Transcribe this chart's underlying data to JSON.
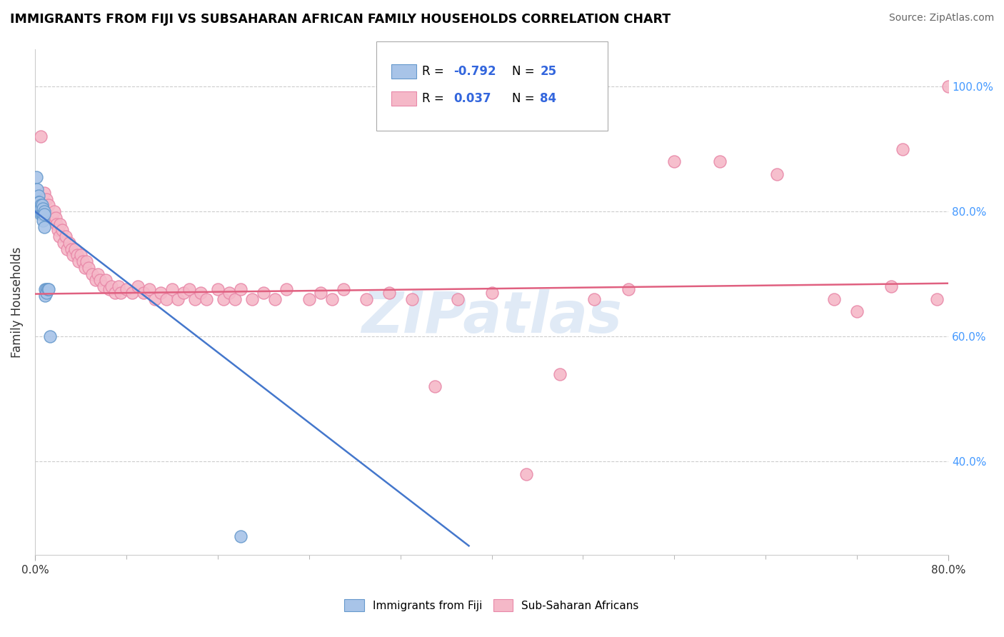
{
  "title": "IMMIGRANTS FROM FIJI VS SUBSAHARAN AFRICAN FAMILY HOUSEHOLDS CORRELATION CHART",
  "source": "Source: ZipAtlas.com",
  "ylabel": "Family Households",
  "fiji_color": "#a8c4e8",
  "fiji_edge_color": "#6699cc",
  "subsaharan_color": "#f5b8c8",
  "subsaharan_edge_color": "#e888a8",
  "trend_fiji_color": "#4477cc",
  "trend_subsaharan_color": "#e06080",
  "legend_R_color": "#3366dd",
  "watermark_color": "#ddeeff",
  "fiji_R": "-0.792",
  "fiji_N": "25",
  "subsaharan_R": "0.037",
  "subsaharan_N": "84",
  "xlim": [
    0.0,
    0.8
  ],
  "ylim": [
    0.25,
    1.06
  ],
  "fiji_x": [
    0.001,
    0.002,
    0.003,
    0.003,
    0.004,
    0.004,
    0.005,
    0.005,
    0.005,
    0.006,
    0.006,
    0.007,
    0.007,
    0.007,
    0.008,
    0.008,
    0.008,
    0.009,
    0.009,
    0.01,
    0.01,
    0.011,
    0.012,
    0.013,
    0.18
  ],
  "fiji_y": [
    0.855,
    0.835,
    0.825,
    0.815,
    0.815,
    0.805,
    0.81,
    0.805,
    0.795,
    0.81,
    0.795,
    0.805,
    0.795,
    0.785,
    0.8,
    0.795,
    0.775,
    0.675,
    0.665,
    0.675,
    0.67,
    0.675,
    0.675,
    0.6,
    0.28
  ],
  "subsaharan_x": [
    0.005,
    0.008,
    0.01,
    0.012,
    0.015,
    0.017,
    0.018,
    0.019,
    0.02,
    0.021,
    0.022,
    0.024,
    0.025,
    0.027,
    0.028,
    0.03,
    0.032,
    0.033,
    0.035,
    0.037,
    0.038,
    0.04,
    0.042,
    0.044,
    0.045,
    0.047,
    0.05,
    0.053,
    0.055,
    0.057,
    0.06,
    0.062,
    0.065,
    0.067,
    0.07,
    0.073,
    0.075,
    0.08,
    0.085,
    0.09,
    0.095,
    0.1,
    0.105,
    0.11,
    0.115,
    0.12,
    0.125,
    0.13,
    0.135,
    0.14,
    0.145,
    0.15,
    0.16,
    0.165,
    0.17,
    0.175,
    0.18,
    0.19,
    0.2,
    0.21,
    0.22,
    0.24,
    0.25,
    0.26,
    0.27,
    0.29,
    0.31,
    0.33,
    0.35,
    0.37,
    0.4,
    0.43,
    0.46,
    0.49,
    0.52,
    0.56,
    0.6,
    0.65,
    0.7,
    0.72,
    0.75,
    0.76,
    0.79,
    0.8
  ],
  "subsaharan_y": [
    0.92,
    0.83,
    0.82,
    0.81,
    0.79,
    0.8,
    0.79,
    0.78,
    0.77,
    0.76,
    0.78,
    0.77,
    0.75,
    0.76,
    0.74,
    0.75,
    0.74,
    0.73,
    0.74,
    0.73,
    0.72,
    0.73,
    0.72,
    0.71,
    0.72,
    0.71,
    0.7,
    0.69,
    0.7,
    0.69,
    0.68,
    0.69,
    0.675,
    0.68,
    0.67,
    0.68,
    0.67,
    0.675,
    0.67,
    0.68,
    0.67,
    0.675,
    0.66,
    0.67,
    0.66,
    0.675,
    0.66,
    0.67,
    0.675,
    0.66,
    0.67,
    0.66,
    0.675,
    0.66,
    0.67,
    0.66,
    0.675,
    0.66,
    0.67,
    0.66,
    0.675,
    0.66,
    0.67,
    0.66,
    0.675,
    0.66,
    0.67,
    0.66,
    0.52,
    0.66,
    0.67,
    0.38,
    0.54,
    0.66,
    0.675,
    0.88,
    0.88,
    0.86,
    0.66,
    0.64,
    0.68,
    0.9,
    0.66,
    1.0
  ],
  "trend_fiji_x0": 0.0,
  "trend_fiji_y0": 0.8,
  "trend_fiji_x1": 0.38,
  "trend_fiji_y1": 0.265,
  "trend_ss_x0": 0.0,
  "trend_ss_y0": 0.668,
  "trend_ss_x1": 0.8,
  "trend_ss_y1": 0.685
}
